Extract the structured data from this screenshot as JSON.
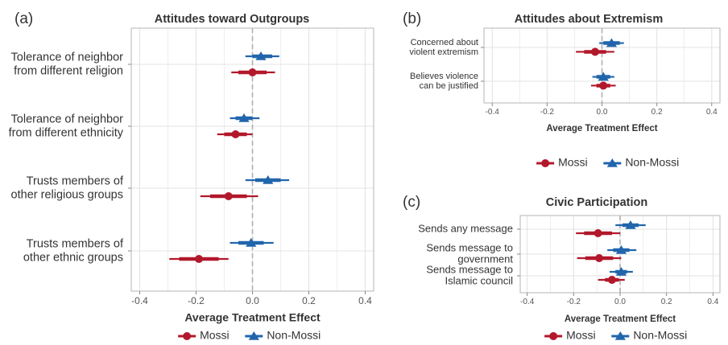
{
  "colors": {
    "mossi": "#b2182b",
    "non_mossi": "#2166ac",
    "panel_bg": "#ffffff",
    "grid": "#e3e3e3",
    "border": "#b5b5b5",
    "zero_line": "#b0b0b0",
    "text": "#333333",
    "tick_text": "#555555"
  },
  "chart_data": [
    {
      "panel_id": "(a)",
      "type": "scatter",
      "title": "Attitudes toward Outgroups",
      "xlabel": "Average Treatment Effect",
      "xlim": [
        -0.43,
        0.43
      ],
      "xticks": [
        -0.4,
        -0.2,
        0,
        0.2,
        0.4
      ],
      "xtick_labels": [
        "-0.4",
        "-0.2",
        "0.0",
        "0.2",
        "0.4"
      ],
      "grid": true,
      "zero_line": true,
      "legend_position": "bottom",
      "categories": [
        {
          "label": [
            "Tolerance of neighbor",
            "from  different religion"
          ]
        },
        {
          "label": [
            "Tolerance of neighbor",
            "from  different ethnicity"
          ]
        },
        {
          "label": [
            "Trusts members of",
            "other religious groups"
          ]
        },
        {
          "label": [
            "Trusts members of",
            "other ethnic groups"
          ]
        }
      ],
      "series": [
        {
          "name": "Mossi",
          "color_key": "mossi",
          "marker": "circle",
          "points": [
            {
              "estimate": 0.0,
              "ci90": [
                -0.05,
                0.05
              ],
              "ci95": [
                -0.075,
                0.08
              ]
            },
            {
              "estimate": -0.06,
              "ci90": [
                -0.1,
                -0.02
              ],
              "ci95": [
                -0.125,
                0.0
              ]
            },
            {
              "estimate": -0.085,
              "ci90": [
                -0.15,
                -0.02
              ],
              "ci95": [
                -0.185,
                0.02
              ]
            },
            {
              "estimate": -0.19,
              "ci90": [
                -0.26,
                -0.12
              ],
              "ci95": [
                -0.295,
                -0.085
              ]
            }
          ]
        },
        {
          "name": "Non-Mossi",
          "color_key": "non_mossi",
          "marker": "triangle",
          "points": [
            {
              "estimate": 0.03,
              "ci90": [
                0.0,
                0.07
              ],
              "ci95": [
                -0.025,
                0.095
              ]
            },
            {
              "estimate": -0.03,
              "ci90": [
                -0.06,
                0.0
              ],
              "ci95": [
                -0.08,
                0.025
              ]
            },
            {
              "estimate": 0.055,
              "ci90": [
                0.01,
                0.1
              ],
              "ci95": [
                -0.025,
                0.13
              ]
            },
            {
              "estimate": -0.005,
              "ci90": [
                -0.05,
                0.04
              ],
              "ci95": [
                -0.08,
                0.075
              ]
            }
          ]
        }
      ]
    },
    {
      "panel_id": "(b)",
      "type": "scatter",
      "title": "Attitudes about Extremism",
      "xlabel": "Average Treatment Effect",
      "xlim": [
        -0.43,
        0.43
      ],
      "xticks": [
        -0.4,
        -0.2,
        0,
        0.2,
        0.4
      ],
      "xtick_labels": [
        "-0.4",
        "-0.2",
        "0.0",
        "0.2",
        "0.4"
      ],
      "grid": true,
      "zero_line": true,
      "legend_position": "bottom",
      "categories": [
        {
          "label": [
            "Concerned about",
            "violent extremism"
          ]
        },
        {
          "label": [
            "Believes violence",
            "can be justified"
          ]
        }
      ],
      "series": [
        {
          "name": "Mossi",
          "color_key": "mossi",
          "marker": "circle",
          "points": [
            {
              "estimate": -0.025,
              "ci90": [
                -0.065,
                0.015
              ],
              "ci95": [
                -0.095,
                0.045
              ]
            },
            {
              "estimate": 0.005,
              "ci90": [
                -0.02,
                0.03
              ],
              "ci95": [
                -0.04,
                0.05
              ]
            }
          ]
        },
        {
          "name": "Non-Mossi",
          "color_key": "non_mossi",
          "marker": "triangle",
          "points": [
            {
              "estimate": 0.035,
              "ci90": [
                0.005,
                0.065
              ],
              "ci95": [
                -0.01,
                0.08
              ]
            },
            {
              "estimate": 0.005,
              "ci90": [
                -0.02,
                0.03
              ],
              "ci95": [
                -0.035,
                0.045
              ]
            }
          ]
        }
      ]
    },
    {
      "panel_id": "(c)",
      "type": "scatter",
      "title": "Civic Participation",
      "xlabel": "Average Treatment Effect",
      "xlim": [
        -0.43,
        0.43
      ],
      "xticks": [
        -0.4,
        -0.2,
        0,
        0.2,
        0.4
      ],
      "xtick_labels": [
        "-0.4",
        "-0.2",
        "0.0",
        "0.2",
        "0.4"
      ],
      "grid": true,
      "zero_line": true,
      "legend_position": "bottom",
      "categories": [
        {
          "label": [
            "Sends any message"
          ]
        },
        {
          "label": [
            "Sends message to",
            "government"
          ]
        },
        {
          "label": [
            "Sends message to",
            "Islamic council"
          ]
        }
      ],
      "series": [
        {
          "name": "Mossi",
          "color_key": "mossi",
          "marker": "circle",
          "points": [
            {
              "estimate": -0.095,
              "ci90": [
                -0.155,
                -0.035
              ],
              "ci95": [
                -0.19,
                0.0
              ]
            },
            {
              "estimate": -0.09,
              "ci90": [
                -0.15,
                -0.03
              ],
              "ci95": [
                -0.185,
                0.005
              ]
            },
            {
              "estimate": -0.035,
              "ci90": [
                -0.065,
                -0.005
              ],
              "ci95": [
                -0.095,
                0.02
              ]
            }
          ]
        },
        {
          "name": "Non-Mossi",
          "color_key": "non_mossi",
          "marker": "triangle",
          "points": [
            {
              "estimate": 0.045,
              "ci90": [
                0.01,
                0.08
              ],
              "ci95": [
                -0.02,
                0.11
              ]
            },
            {
              "estimate": 0.005,
              "ci90": [
                -0.03,
                0.04
              ],
              "ci95": [
                -0.055,
                0.07
              ]
            },
            {
              "estimate": 0.005,
              "ci90": [
                -0.02,
                0.03
              ],
              "ci95": [
                -0.045,
                0.055
              ]
            }
          ]
        }
      ]
    }
  ]
}
